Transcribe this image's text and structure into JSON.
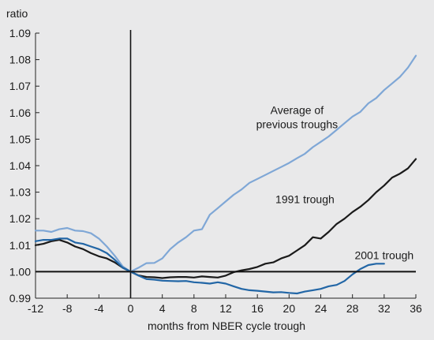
{
  "chart_data": {
    "type": "line",
    "ylabel": "ratio",
    "xlabel": "months from NBER cycle trough",
    "xlim": [
      -12,
      36
    ],
    "ylim": [
      0.99,
      1.09
    ],
    "x_ticks": [
      -12,
      -8,
      -4,
      0,
      4,
      8,
      12,
      16,
      20,
      24,
      28,
      32,
      36
    ],
    "y_ticks": [
      0.99,
      1.0,
      1.01,
      1.02,
      1.03,
      1.04,
      1.05,
      1.06,
      1.07,
      1.08,
      1.09
    ],
    "y_tick_labels": [
      "0.99",
      "1.00",
      "1.01",
      "1.02",
      "1.03",
      "1.04",
      "1.05",
      "1.06",
      "1.07",
      "1.08",
      "1.09"
    ],
    "baseline": 1.0,
    "vertical_marker_x": 0,
    "series": [
      {
        "name": "Average of previous troughs",
        "label_lines": [
          "Average of",
          "previous troughs"
        ],
        "color": "#7fa7d6",
        "x": [
          -12,
          -11,
          -10,
          -9,
          -8,
          -7,
          -6,
          -5,
          -4,
          -3,
          -2,
          -1,
          0,
          1,
          2,
          3,
          4,
          5,
          6,
          7,
          8,
          9,
          10,
          11,
          12,
          13,
          14,
          15,
          16,
          17,
          18,
          19,
          20,
          21,
          22,
          23,
          24,
          25,
          26,
          27,
          28,
          29,
          30,
          31,
          32,
          33,
          34,
          35,
          36
        ],
        "values": [
          1.0155,
          1.0155,
          1.015,
          1.016,
          1.0165,
          1.0155,
          1.0153,
          1.0145,
          1.0125,
          1.0095,
          1.006,
          1.002,
          1.0,
          1.0015,
          1.0032,
          1.0033,
          1.005,
          1.0085,
          1.011,
          1.013,
          1.0155,
          1.016,
          1.0215,
          1.024,
          1.0265,
          1.029,
          1.031,
          1.0335,
          1.035,
          1.0365,
          1.038,
          1.0395,
          1.041,
          1.0428,
          1.0445,
          1.047,
          1.049,
          1.051,
          1.0535,
          1.056,
          1.0585,
          1.0603,
          1.0635,
          1.0655,
          1.0685,
          1.071,
          1.0735,
          1.077,
          1.0815
        ]
      },
      {
        "name": "1991 trough",
        "color": "#1a1a1a",
        "x": [
          -12,
          -11,
          -10,
          -9,
          -8,
          -7,
          -6,
          -5,
          -4,
          -3,
          -2,
          -1,
          0,
          1,
          2,
          3,
          4,
          5,
          6,
          7,
          8,
          9,
          10,
          11,
          12,
          13,
          14,
          15,
          16,
          17,
          18,
          19,
          20,
          21,
          22,
          23,
          24,
          25,
          26,
          27,
          28,
          29,
          30,
          31,
          32,
          33,
          34,
          35,
          36
        ],
        "values": [
          1.01,
          1.0105,
          1.0115,
          1.012,
          1.011,
          1.0095,
          1.0085,
          1.007,
          1.0058,
          1.005,
          1.0035,
          1.0015,
          1.0,
          0.9986,
          0.998,
          0.9979,
          0.9976,
          0.9979,
          0.998,
          0.998,
          0.9978,
          0.9982,
          0.998,
          0.9978,
          0.9985,
          0.9998,
          1.0005,
          1.001,
          1.0018,
          1.003,
          1.0035,
          1.005,
          1.006,
          1.008,
          1.01,
          1.013,
          1.0125,
          1.015,
          1.018,
          1.02,
          1.0225,
          1.0245,
          1.027,
          1.03,
          1.0325,
          1.0355,
          1.037,
          1.039,
          1.0425
        ]
      },
      {
        "name": "2001 trough",
        "color": "#2266a6",
        "x": [
          -12,
          -11,
          -10,
          -9,
          -8,
          -7,
          -6,
          -5,
          -4,
          -3,
          -2,
          -1,
          0,
          1,
          2,
          3,
          4,
          5,
          6,
          7,
          8,
          9,
          10,
          11,
          12,
          13,
          14,
          15,
          16,
          17,
          18,
          19,
          20,
          21,
          22,
          23,
          24,
          25,
          26,
          27,
          28,
          29,
          30,
          31,
          32
        ],
        "values": [
          1.0115,
          1.012,
          1.012,
          1.0125,
          1.0125,
          1.011,
          1.0105,
          1.0095,
          1.0085,
          1.007,
          1.0045,
          1.0015,
          1.0,
          0.9985,
          0.9972,
          0.997,
          0.9966,
          0.9965,
          0.9964,
          0.9965,
          0.996,
          0.9958,
          0.9955,
          0.996,
          0.9955,
          0.9945,
          0.9935,
          0.993,
          0.9928,
          0.9925,
          0.9922,
          0.9923,
          0.992,
          0.9918,
          0.9925,
          0.993,
          0.9935,
          0.9945,
          0.995,
          0.9965,
          0.999,
          1.001,
          1.0025,
          1.003,
          1.003
        ]
      }
    ],
    "annotations": [
      {
        "series": 0,
        "text_lines": [
          "Average of",
          "previous troughs"
        ],
        "x": 21,
        "y": 1.0595
      },
      {
        "series": 1,
        "text": "1991 trough",
        "x": 22,
        "y": 1.0258
      },
      {
        "series": 2,
        "text": "2001 trough",
        "x": 32,
        "y": 1.0048
      }
    ]
  }
}
